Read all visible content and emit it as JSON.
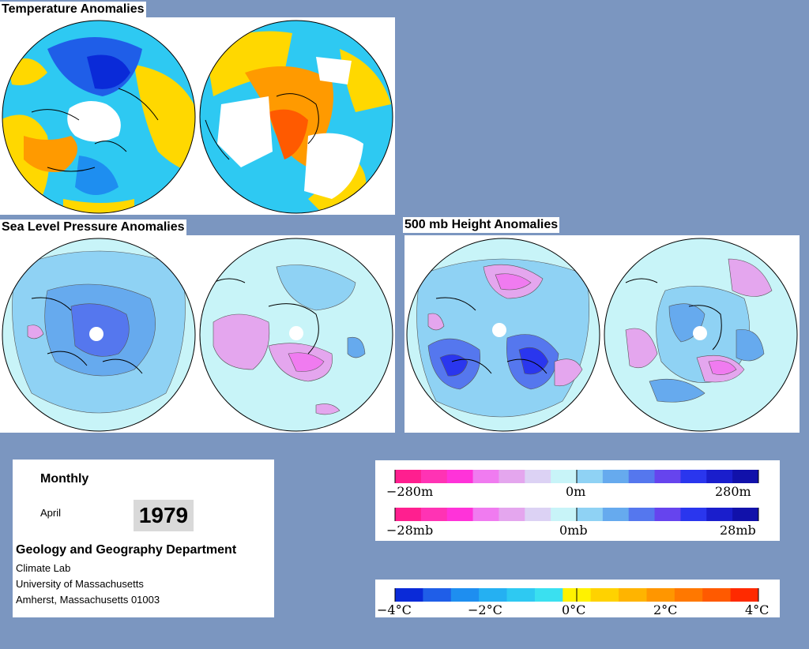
{
  "sections": {
    "temperature_title": "Temperature Anomalies",
    "slp_title": "Sea Level Pressure Anomalies",
    "height_title": "500 mb Height Anomalies"
  },
  "info": {
    "period": "Monthly",
    "month": "April",
    "year": "1979",
    "department": "Geology and Geography Department",
    "lab": "Climate Lab",
    "university": "University of Massachusetts",
    "address": "Amherst, Massachusetts 01003"
  },
  "legend_height": {
    "labels": [
      "−280m",
      "0m",
      "280m"
    ],
    "colors": [
      "#ff1f8f",
      "#ff33b4",
      "#ff33d9",
      "#f07bf0",
      "#e4a6ee",
      "#dcd2f4",
      "#c8f4f8",
      "#8fd2f4",
      "#66aaee",
      "#5577ee",
      "#6644ee",
      "#2a36ee",
      "#1a1ecc",
      "#1111aa"
    ]
  },
  "legend_pressure": {
    "labels": [
      "−28mb",
      "0mb",
      "28mb"
    ],
    "colors": [
      "#ff1f8f",
      "#ff33b4",
      "#ff33d9",
      "#f07bf0",
      "#e4a6ee",
      "#dcd2f4",
      "#c8f4f8",
      "#8fd2f4",
      "#66aaee",
      "#5577ee",
      "#6644ee",
      "#2a36ee",
      "#1a1ecc",
      "#1111aa"
    ]
  },
  "legend_temperature": {
    "labels": [
      "−4°C",
      "−2°C",
      "0°C",
      "2°C",
      "4°C"
    ],
    "colors": [
      "#0a2ad8",
      "#1f5ee8",
      "#1e8ef0",
      "#25b0f2",
      "#2ec9f2",
      "#3ae0f0",
      "#fff200",
      "#ffd200",
      "#ffb400",
      "#ff9600",
      "#ff7800",
      "#ff5a00",
      "#ff2a00"
    ]
  }
}
